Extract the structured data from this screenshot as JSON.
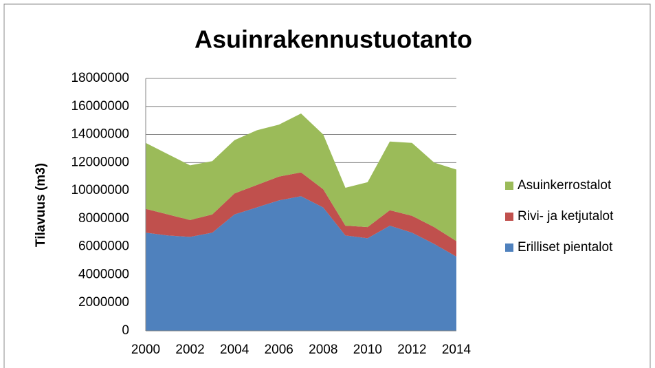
{
  "chart_data": {
    "type": "stacked_area",
    "title": "Asuinrakennustuotanto",
    "y_label": "Tilavuus (m3)",
    "x": [
      2000,
      2001,
      2002,
      2003,
      2004,
      2005,
      2006,
      2007,
      2008,
      2009,
      2010,
      2011,
      2012,
      2013,
      2014
    ],
    "series": [
      {
        "name": "Erilliset pientalot",
        "color": "#4f81bd",
        "values": [
          7000000,
          6800000,
          6700000,
          7000000,
          8300000,
          8800000,
          9300000,
          9600000,
          8800000,
          6800000,
          6600000,
          7500000,
          7000000,
          6200000,
          5300000
        ]
      },
      {
        "name": "Rivi- ja ketjutalot",
        "color": "#c0504d",
        "values": [
          1700000,
          1500000,
          1200000,
          1300000,
          1500000,
          1600000,
          1700000,
          1700000,
          1300000,
          700000,
          800000,
          1100000,
          1200000,
          1200000,
          1100000
        ]
      },
      {
        "name": "Asuinkerrostalot",
        "color": "#9bbb59",
        "values": [
          4700000,
          4300000,
          3900000,
          3800000,
          3800000,
          3900000,
          3700000,
          4200000,
          3900000,
          2700000,
          3200000,
          4900000,
          5200000,
          4600000,
          5100000
        ]
      }
    ],
    "xlim": [
      2000,
      2014
    ],
    "xticks": [
      2000,
      2002,
      2004,
      2006,
      2008,
      2010,
      2012,
      2014
    ],
    "ylim": [
      0,
      18000000
    ],
    "yticks": [
      0,
      2000000,
      4000000,
      6000000,
      8000000,
      10000000,
      12000000,
      14000000,
      16000000,
      18000000
    ],
    "grid": true,
    "legend": "right"
  }
}
